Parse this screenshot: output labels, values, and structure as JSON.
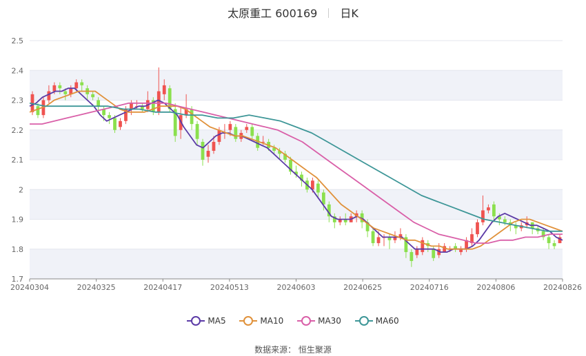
{
  "header": {
    "title": "太原重工 600169",
    "period": "日K"
  },
  "legend": {
    "items": [
      {
        "name": "MA5",
        "color": "#5b3aa6"
      },
      {
        "name": "MA10",
        "color": "#e0913a"
      },
      {
        "name": "MA30",
        "color": "#d95fa8"
      },
      {
        "name": "MA60",
        "color": "#3d9697"
      }
    ]
  },
  "footer": {
    "source": "数据来源： 恒生聚源"
  },
  "colors": {
    "up": "#ef5350",
    "down": "#8be04e",
    "grid_band": "#f0f2f8"
  },
  "chart_data": {
    "type": "candlestick",
    "title": "太原重工 600169 日K",
    "ylim": [
      1.7,
      2.5
    ],
    "yticks": [
      "1.7",
      "1.8",
      "1.9",
      "2",
      "2.1",
      "2.2",
      "2.3",
      "2.4",
      "2.5"
    ],
    "xticks": [
      "20240304",
      "20240325",
      "20240417",
      "20240513",
      "20240603",
      "20240625",
      "20240716",
      "20240806",
      "20240826"
    ],
    "series_ohlc": [
      [
        2.26,
        2.32,
        2.33,
        2.25
      ],
      [
        2.28,
        2.25,
        2.29,
        2.24
      ],
      [
        2.25,
        2.3,
        2.31,
        2.24
      ],
      [
        2.3,
        2.33,
        2.35,
        2.29
      ],
      [
        2.33,
        2.35,
        2.36,
        2.32
      ],
      [
        2.35,
        2.34,
        2.36,
        2.32
      ],
      [
        2.33,
        2.32,
        2.34,
        2.3
      ],
      [
        2.32,
        2.34,
        2.35,
        2.31
      ],
      [
        2.34,
        2.36,
        2.37,
        2.33
      ],
      [
        2.36,
        2.35,
        2.37,
        2.33
      ],
      [
        2.34,
        2.32,
        2.35,
        2.3
      ],
      [
        2.32,
        2.31,
        2.33,
        2.3
      ],
      [
        2.3,
        2.28,
        2.31,
        2.26
      ],
      [
        2.27,
        2.25,
        2.28,
        2.23
      ],
      [
        2.25,
        2.24,
        2.26,
        2.22
      ],
      [
        2.24,
        2.2,
        2.25,
        2.19
      ],
      [
        2.21,
        2.23,
        2.24,
        2.2
      ],
      [
        2.23,
        2.27,
        2.28,
        2.22
      ],
      [
        2.27,
        2.29,
        2.3,
        2.25
      ],
      [
        2.28,
        2.28,
        2.3,
        2.27
      ],
      [
        2.28,
        2.27,
        2.29,
        2.26
      ],
      [
        2.27,
        2.3,
        2.33,
        2.26
      ],
      [
        2.3,
        2.26,
        2.31,
        2.25
      ],
      [
        2.26,
        2.33,
        2.41,
        2.25
      ],
      [
        2.32,
        2.35,
        2.37,
        2.3
      ],
      [
        2.34,
        2.27,
        2.35,
        2.26
      ],
      [
        2.27,
        2.18,
        2.29,
        2.16
      ],
      [
        2.2,
        2.25,
        2.28,
        2.17
      ],
      [
        2.25,
        2.27,
        2.32,
        2.24
      ],
      [
        2.27,
        2.22,
        2.28,
        2.2
      ],
      [
        2.22,
        2.17,
        2.23,
        2.15
      ],
      [
        2.16,
        2.1,
        2.17,
        2.08
      ],
      [
        2.11,
        2.13,
        2.15,
        2.09
      ],
      [
        2.13,
        2.16,
        2.18,
        2.12
      ],
      [
        2.16,
        2.2,
        2.21,
        2.15
      ],
      [
        2.19,
        2.19,
        2.22,
        2.17
      ],
      [
        2.2,
        2.22,
        2.23,
        2.18
      ],
      [
        2.21,
        2.17,
        2.22,
        2.16
      ],
      [
        2.17,
        2.19,
        2.2,
        2.16
      ],
      [
        2.2,
        2.21,
        2.22,
        2.19
      ],
      [
        2.21,
        2.18,
        2.22,
        2.17
      ],
      [
        2.18,
        2.14,
        2.19,
        2.13
      ],
      [
        2.16,
        2.16,
        2.18,
        2.15
      ],
      [
        2.16,
        2.14,
        2.17,
        2.13
      ],
      [
        2.14,
        2.13,
        2.15,
        2.12
      ],
      [
        2.13,
        2.12,
        2.14,
        2.1
      ],
      [
        2.12,
        2.1,
        2.13,
        2.09
      ],
      [
        2.1,
        2.06,
        2.11,
        2.05
      ],
      [
        2.06,
        2.05,
        2.08,
        2.04
      ],
      [
        2.05,
        2.03,
        2.06,
        2.01
      ],
      [
        2.03,
        2.0,
        2.04,
        1.99
      ],
      [
        2.0,
        2.03,
        2.04,
        1.99
      ],
      [
        2.02,
        1.99,
        2.03,
        1.97
      ],
      [
        1.99,
        1.95,
        2.0,
        1.93
      ],
      [
        1.95,
        1.91,
        1.96,
        1.89
      ],
      [
        1.91,
        1.89,
        1.92,
        1.87
      ],
      [
        1.89,
        1.9,
        1.91,
        1.88
      ],
      [
        1.9,
        1.89,
        1.92,
        1.88
      ],
      [
        1.89,
        1.91,
        1.92,
        1.89
      ],
      [
        1.91,
        1.92,
        1.93,
        1.89
      ],
      [
        1.92,
        1.89,
        1.93,
        1.87
      ],
      [
        1.89,
        1.86,
        1.9,
        1.84
      ],
      [
        1.86,
        1.82,
        1.87,
        1.81
      ],
      [
        1.82,
        1.84,
        1.86,
        1.81
      ],
      [
        1.84,
        1.84,
        1.85,
        1.81
      ],
      [
        1.84,
        1.83,
        1.85,
        1.8
      ],
      [
        1.83,
        1.84,
        1.86,
        1.82
      ],
      [
        1.84,
        1.85,
        1.87,
        1.83
      ],
      [
        1.84,
        1.79,
        1.85,
        1.77
      ],
      [
        1.79,
        1.76,
        1.8,
        1.74
      ],
      [
        1.78,
        1.8,
        1.81,
        1.77
      ],
      [
        1.79,
        1.83,
        1.84,
        1.78
      ],
      [
        1.82,
        1.81,
        1.83,
        1.79
      ],
      [
        1.8,
        1.77,
        1.81,
        1.76
      ],
      [
        1.78,
        1.8,
        1.82,
        1.77
      ],
      [
        1.79,
        1.81,
        1.82,
        1.79
      ],
      [
        1.8,
        1.8,
        1.81,
        1.79
      ],
      [
        1.81,
        1.8,
        1.82,
        1.79
      ],
      [
        1.79,
        1.8,
        1.81,
        1.78
      ],
      [
        1.8,
        1.83,
        1.84,
        1.79
      ],
      [
        1.82,
        1.85,
        1.87,
        1.81
      ],
      [
        1.85,
        1.89,
        1.9,
        1.84
      ],
      [
        1.89,
        1.93,
        1.98,
        1.88
      ],
      [
        1.93,
        1.94,
        1.95,
        1.92
      ],
      [
        1.95,
        1.91,
        1.96,
        1.89
      ],
      [
        1.91,
        1.9,
        1.92,
        1.88
      ],
      [
        1.9,
        1.89,
        1.91,
        1.88
      ],
      [
        1.89,
        1.88,
        1.9,
        1.86
      ],
      [
        1.88,
        1.87,
        1.89,
        1.85
      ],
      [
        1.87,
        1.88,
        1.89,
        1.86
      ],
      [
        1.88,
        1.89,
        1.91,
        1.87
      ],
      [
        1.89,
        1.87,
        1.89,
        1.85
      ],
      [
        1.87,
        1.86,
        1.88,
        1.85
      ],
      [
        1.86,
        1.84,
        1.87,
        1.83
      ],
      [
        1.84,
        1.82,
        1.85,
        1.8
      ],
      [
        1.82,
        1.81,
        1.83,
        1.8
      ],
      [
        1.82,
        1.84,
        1.85,
        1.82
      ]
    ],
    "series": [
      {
        "name": "MA5",
        "values": [
          2.28,
          2.29,
          2.31,
          2.32,
          2.33,
          2.33,
          2.34,
          2.34,
          2.32,
          2.3,
          2.28,
          2.25,
          2.23,
          2.24,
          2.25,
          2.26,
          2.27,
          2.28,
          2.28,
          2.29,
          2.3,
          2.29,
          2.27,
          2.25,
          2.21,
          2.18,
          2.15,
          2.14,
          2.16,
          2.18,
          2.19,
          2.19,
          2.18,
          2.18,
          2.17,
          2.16,
          2.15,
          2.14,
          2.12,
          2.1,
          2.08,
          2.06,
          2.04,
          2.02,
          2.0,
          1.97,
          1.94,
          1.91,
          1.9,
          1.9,
          1.9,
          1.91,
          1.9,
          1.88,
          1.86,
          1.84,
          1.84,
          1.84,
          1.84,
          1.82,
          1.8,
          1.8,
          1.8,
          1.8,
          1.79,
          1.79,
          1.8,
          1.8,
          1.8,
          1.81,
          1.83,
          1.86,
          1.89,
          1.91,
          1.92,
          1.91,
          1.9,
          1.89,
          1.88,
          1.88,
          1.87,
          1.86,
          1.84,
          1.83
        ]
      },
      {
        "name": "MA10",
        "values": [
          2.26,
          2.27,
          2.28,
          2.3,
          2.31,
          2.32,
          2.33,
          2.33,
          2.33,
          2.31,
          2.29,
          2.27,
          2.26,
          2.26,
          2.26,
          2.27,
          2.28,
          2.28,
          2.28,
          2.27,
          2.25,
          2.23,
          2.21,
          2.2,
          2.19,
          2.18,
          2.18,
          2.17,
          2.16,
          2.15,
          2.14,
          2.12,
          2.1,
          2.08,
          2.06,
          2.04,
          2.01,
          1.98,
          1.95,
          1.93,
          1.91,
          1.89,
          1.87,
          1.86,
          1.85,
          1.84,
          1.83,
          1.83,
          1.82,
          1.81,
          1.81,
          1.8,
          1.8,
          1.8,
          1.8,
          1.81,
          1.83,
          1.85,
          1.87,
          1.89,
          1.9,
          1.9,
          1.89,
          1.88,
          1.87,
          1.86
        ]
      },
      {
        "name": "MA30",
        "values": [
          2.22,
          2.22,
          2.23,
          2.24,
          2.25,
          2.26,
          2.27,
          2.28,
          2.29,
          2.29,
          2.29,
          2.29,
          2.28,
          2.27,
          2.26,
          2.25,
          2.24,
          2.23,
          2.22,
          2.21,
          2.2,
          2.18,
          2.16,
          2.13,
          2.1,
          2.07,
          2.04,
          2.01,
          1.98,
          1.95,
          1.92,
          1.89,
          1.87,
          1.85,
          1.84,
          1.83,
          1.82,
          1.82,
          1.83,
          1.83,
          1.84,
          1.84,
          1.85,
          1.85
        ]
      },
      {
        "name": "MA60",
        "values": [
          2.29,
          2.28,
          2.28,
          2.28,
          2.28,
          2.28,
          2.27,
          2.27,
          2.26,
          2.26,
          2.25,
          2.25,
          2.24,
          2.24,
          2.25,
          2.24,
          2.23,
          2.21,
          2.19,
          2.16,
          2.13,
          2.1,
          2.07,
          2.04,
          2.01,
          1.98,
          1.96,
          1.94,
          1.92,
          1.9,
          1.89,
          1.88,
          1.87,
          1.86,
          1.86
        ]
      }
    ]
  }
}
